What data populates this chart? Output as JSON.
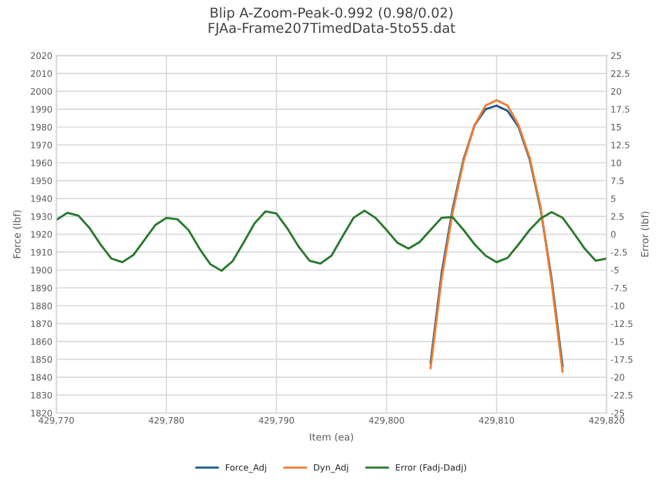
{
  "chart_data": {
    "type": "line",
    "title": "Blip A-Zoom-Peak-0.992 (0.98/0.02)",
    "subtitle": "FJAa-Frame207TimedData-5to55.dat",
    "xlabel": "Item (ea)",
    "ylabel": "Force (lbf)",
    "y2label": "Error (lbf)",
    "xlim": [
      429770,
      429820
    ],
    "xticks": [
      {
        "value": 429770,
        "label": "429,770"
      },
      {
        "value": 429780,
        "label": "429,780"
      },
      {
        "value": 429790,
        "label": "429,790"
      },
      {
        "value": 429800,
        "label": "429,800"
      },
      {
        "value": 429810,
        "label": "429,810"
      },
      {
        "value": 429820,
        "label": "429,820"
      }
    ],
    "ylim": [
      1820,
      2020
    ],
    "yticks": [
      1820,
      1830,
      1840,
      1850,
      1860,
      1870,
      1880,
      1890,
      1900,
      1910,
      1920,
      1930,
      1940,
      1950,
      1960,
      1970,
      1980,
      1990,
      2000,
      2010,
      2020
    ],
    "y2lim": [
      -25,
      25
    ],
    "y2ticks": [
      -25,
      -22.5,
      -20,
      -17.5,
      -15,
      -12.5,
      -10,
      -7.5,
      -5,
      -2.5,
      0,
      2.5,
      5,
      7.5,
      10,
      12.5,
      15,
      17.5,
      20,
      22.5,
      25
    ],
    "grid": true,
    "legend": "bottom",
    "marker": "none",
    "line_style": "solid",
    "series": [
      {
        "name": "Force_Adj",
        "color": "#1f5a8a",
        "x": [
          429804,
          429805,
          429806,
          429807,
          429808,
          429809,
          429810,
          429811,
          429812,
          429813,
          429814,
          429815,
          429816
        ],
        "values": [
          1848,
          1898,
          1934,
          1962,
          1981,
          1990,
          1992,
          1989,
          1980,
          1962,
          1934,
          1895,
          1846
        ]
      },
      {
        "name": "Dyn_Adj",
        "color": "#ed7d31",
        "x": [
          429804,
          429805,
          429806,
          429807,
          429808,
          429809,
          429810,
          429811,
          429812,
          429813,
          429814,
          429815,
          429816
        ],
        "values": [
          1845,
          1895,
          1932,
          1961,
          1981,
          1992,
          1995,
          1992,
          1981,
          1963,
          1935,
          1893,
          1843
        ]
      },
      {
        "name": "Error (Fadj-Dadj)",
        "color": "#2a7a2e",
        "axis": "y2",
        "x": [
          429770,
          429771,
          429772,
          429773,
          429774,
          429775,
          429776,
          429777,
          429778,
          429779,
          429780,
          429781,
          429782,
          429783,
          429784,
          429785,
          429786,
          429787,
          429788,
          429789,
          429790,
          429791,
          429792,
          429793,
          429794,
          429795,
          429796,
          429797,
          429798,
          429799,
          429800,
          429801,
          429802,
          429803,
          429804,
          429805,
          429806,
          429807,
          429808,
          429809,
          429810,
          429811,
          429812,
          429813,
          429814,
          429815,
          429816,
          429817,
          429818,
          429819,
          429820
        ],
        "values": [
          2.0,
          3.0,
          2.6,
          0.9,
          -1.4,
          -3.4,
          -3.9,
          -2.9,
          -0.8,
          1.3,
          2.3,
          2.1,
          0.6,
          -2.0,
          -4.2,
          -5.1,
          -3.8,
          -1.2,
          1.5,
          3.2,
          2.9,
          0.8,
          -1.7,
          -3.7,
          -4.1,
          -3.0,
          -0.3,
          2.3,
          3.3,
          2.3,
          0.6,
          -1.2,
          -2.0,
          -1.1,
          0.6,
          2.3,
          2.4,
          0.6,
          -1.4,
          -3.0,
          -3.9,
          -3.3,
          -1.4,
          0.6,
          2.2,
          3.1,
          2.3,
          0.2,
          -2.0,
          -3.7,
          -3.4
        ]
      }
    ]
  }
}
